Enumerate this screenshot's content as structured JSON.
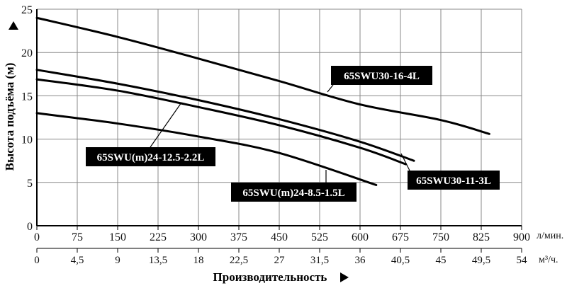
{
  "chart_data": {
    "type": "line",
    "title": "",
    "ylabel": "Высота подъёма (м)",
    "xlabel": "Производительность",
    "x_unit_primary": "л/мин.",
    "x_unit_secondary": "м³/ч.",
    "ylim": [
      0,
      25
    ],
    "xlim": [
      0,
      900
    ],
    "y_ticks": [
      "0",
      "5",
      "10",
      "15",
      "20",
      "25"
    ],
    "x_ticks_primary": [
      "0",
      "75",
      "150",
      "225",
      "300",
      "375",
      "450",
      "525",
      "600",
      "675",
      "750",
      "825",
      "900"
    ],
    "x_ticks_secondary": [
      "0",
      "4,5",
      "9",
      "13,5",
      "18",
      "22,5",
      "27",
      "31,5",
      "36",
      "40,5",
      "45",
      "49,5",
      "54"
    ],
    "grid": true,
    "series": [
      {
        "name": "65SWU30-16-4L",
        "x": [
          0,
          150,
          300,
          450,
          600,
          750,
          840
        ],
        "y": [
          24,
          21.8,
          19.3,
          16.7,
          14,
          12.2,
          10.6
        ]
      },
      {
        "name": "65SWU30-11-3L",
        "x": [
          0,
          150,
          300,
          450,
          600,
          700
        ],
        "y": [
          18,
          16.4,
          14.5,
          12.3,
          9.7,
          7.5
        ]
      },
      {
        "name": "65SWU(m)24-12.5-2.2L",
        "x": [
          0,
          150,
          300,
          450,
          600,
          685
        ],
        "y": [
          16.9,
          15.6,
          13.7,
          11.6,
          9,
          7.1
        ]
      },
      {
        "name": "65SWU(m)24-8.5-1.5L",
        "x": [
          0,
          150,
          300,
          450,
          630
        ],
        "y": [
          13,
          11.8,
          10.3,
          8.4,
          4.7
        ]
      }
    ],
    "annotations": [
      {
        "series": "65SWU30-16-4L",
        "text": "65SWU30-16-4L"
      },
      {
        "series": "65SWU30-11-3L",
        "text": "65SWU30-11-3L"
      },
      {
        "series": "65SWU(m)24-12.5-2.2L",
        "text": "65SWU(m)24-12.5-2.2L"
      },
      {
        "series": "65SWU(m)24-8.5-1.5L",
        "text": "65SWU(m)24-8.5-1.5L"
      }
    ]
  }
}
